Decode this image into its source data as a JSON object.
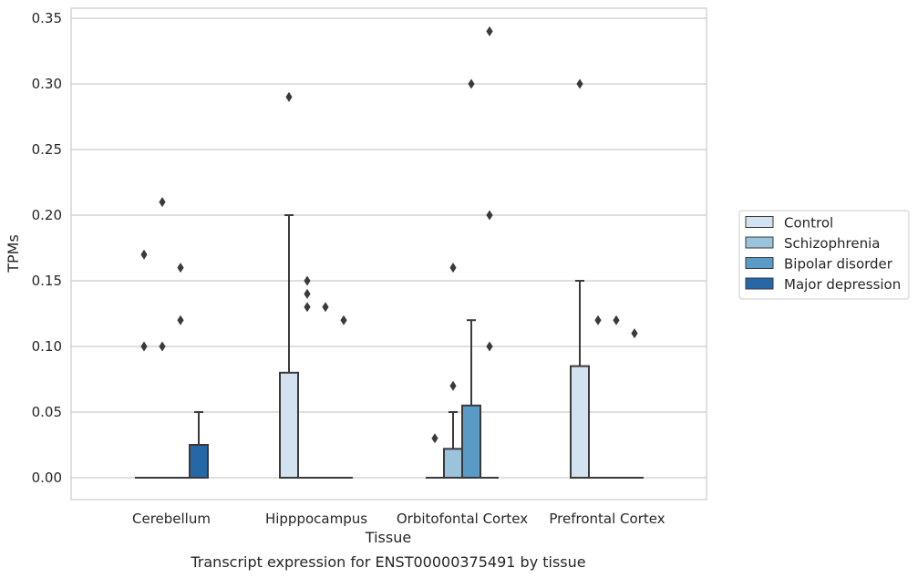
{
  "chart_data": {
    "type": "box",
    "title": "Transcript expression for ENST00000375491 by tissue",
    "xlabel": "Tissue",
    "ylabel": "TPMs",
    "ylim": [
      -0.017,
      0.358
    ],
    "yticks": [
      0.0,
      0.05,
      0.1,
      0.15,
      0.2,
      0.25,
      0.3,
      0.35
    ],
    "ytick_labels": [
      "0.00",
      "0.05",
      "0.10",
      "0.15",
      "0.20",
      "0.25",
      "0.30",
      "0.35"
    ],
    "categories": [
      "Cerebellum",
      "Hipppocampus",
      "Orbitofontal Cortex",
      "Prefrontal Cortex"
    ],
    "grid": true,
    "legend_position": "right",
    "series": [
      {
        "name": "Control",
        "color": "#d3e2f1",
        "boxes": [
          {
            "q1": 0,
            "median": 0,
            "q3": 0,
            "whisker_low": 0,
            "whisker_high": 0,
            "outliers": [
              0.1,
              0.17
            ]
          },
          {
            "q1": 0,
            "median": 0,
            "q3": 0.08,
            "whisker_low": 0,
            "whisker_high": 0.2,
            "outliers": [
              0.29
            ]
          },
          {
            "q1": 0,
            "median": 0,
            "q3": 0,
            "whisker_low": 0,
            "whisker_high": 0,
            "outliers": [
              0.03
            ]
          },
          {
            "q1": 0,
            "median": 0,
            "q3": 0.085,
            "whisker_low": 0,
            "whisker_high": 0.15,
            "outliers": [
              0.3
            ]
          }
        ]
      },
      {
        "name": "Schizophrenia",
        "color": "#9ac3dc",
        "boxes": [
          {
            "q1": 0,
            "median": 0,
            "q3": 0,
            "whisker_low": 0,
            "whisker_high": 0,
            "outliers": [
              0.1,
              0.21
            ]
          },
          {
            "q1": 0,
            "median": 0,
            "q3": 0,
            "whisker_low": 0,
            "whisker_high": 0,
            "outliers": [
              0.13,
              0.14,
              0.15
            ]
          },
          {
            "q1": 0,
            "median": 0,
            "q3": 0.022,
            "whisker_low": 0,
            "whisker_high": 0.05,
            "outliers": [
              0.07,
              0.16
            ]
          },
          {
            "q1": 0,
            "median": 0,
            "q3": 0,
            "whisker_low": 0,
            "whisker_high": 0,
            "outliers": [
              0.12
            ]
          }
        ]
      },
      {
        "name": "Bipolar disorder",
        "color": "#5a9ac6",
        "boxes": [
          {
            "q1": 0,
            "median": 0,
            "q3": 0,
            "whisker_low": 0,
            "whisker_high": 0,
            "outliers": [
              0.12,
              0.16
            ]
          },
          {
            "q1": 0,
            "median": 0,
            "q3": 0,
            "whisker_low": 0,
            "whisker_high": 0,
            "outliers": [
              0.13
            ]
          },
          {
            "q1": 0,
            "median": 0,
            "q3": 0.055,
            "whisker_low": 0,
            "whisker_high": 0.12,
            "outliers": [
              0.3
            ]
          },
          {
            "q1": 0,
            "median": 0,
            "q3": 0,
            "whisker_low": 0,
            "whisker_high": 0,
            "outliers": [
              0.12
            ]
          }
        ]
      },
      {
        "name": "Major depression",
        "color": "#2667a8",
        "boxes": [
          {
            "q1": 0,
            "median": 0,
            "q3": 0.025,
            "whisker_low": 0,
            "whisker_high": 0.05,
            "outliers": []
          },
          {
            "q1": 0,
            "median": 0,
            "q3": 0,
            "whisker_low": 0,
            "whisker_high": 0,
            "outliers": [
              0.12
            ]
          },
          {
            "q1": 0,
            "median": 0,
            "q3": 0,
            "whisker_low": 0,
            "whisker_high": 0,
            "outliers": [
              0.1,
              0.2,
              0.34
            ]
          },
          {
            "q1": 0,
            "median": 0,
            "q3": 0,
            "whisker_low": 0,
            "whisker_high": 0,
            "outliers": [
              0.11
            ]
          }
        ]
      }
    ]
  }
}
